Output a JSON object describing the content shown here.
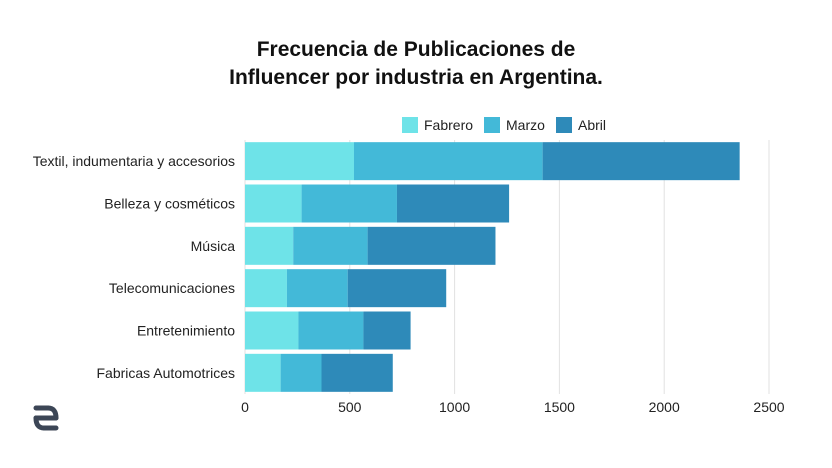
{
  "chart_data": {
    "type": "bar",
    "orientation": "horizontal",
    "stacked": true,
    "title_lines": [
      "Frecuencia de Publicaciones de",
      "Influencer por industria en Argentina."
    ],
    "xlabel": "",
    "ylabel": "",
    "xlim": [
      0,
      2500
    ],
    "x_ticks": [
      0,
      500,
      1000,
      1500,
      2000,
      2500
    ],
    "grid": true,
    "legend_position": "top",
    "categories": [
      "Textil, indumentaria y accesorios",
      "Belleza y cosméticos",
      "Música",
      "Telecomunicaciones",
      "Entretenimiento",
      "Fabricas Automotrices"
    ],
    "series": [
      {
        "name": "Fabrero",
        "color": "#6ee3e8",
        "values": [
          520,
          270,
          230,
          200,
          255,
          170
        ]
      },
      {
        "name": "Marzo",
        "color": "#43b9d8",
        "values": [
          900,
          455,
          355,
          290,
          310,
          195
        ]
      },
      {
        "name": "Abril",
        "color": "#2e8ab9",
        "values": [
          940,
          535,
          610,
          470,
          225,
          340
        ]
      }
    ]
  },
  "logo": {
    "icon": "brand-logo-icon",
    "color": "#3c4656"
  }
}
